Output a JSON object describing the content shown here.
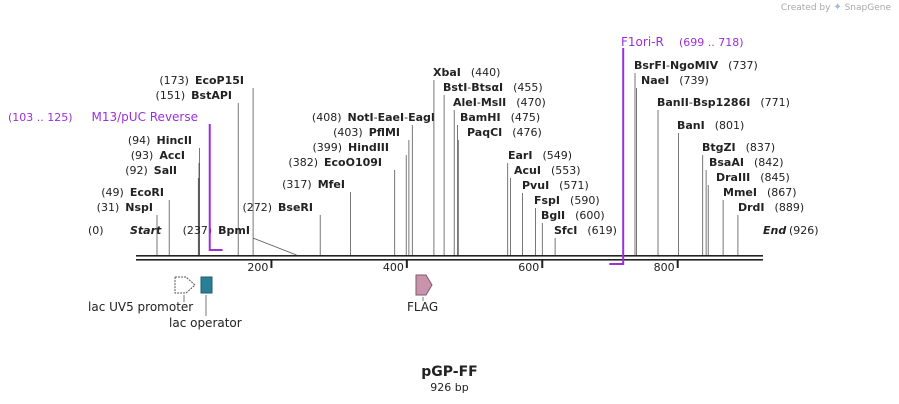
{
  "credit": {
    "created_by": "Created by",
    "brand": "SnapGene",
    "brand_icon": "snapgene-logo-icon"
  },
  "plasmid": {
    "name": "pGP-FF",
    "length_label": "926 bp",
    "length": 926
  },
  "ends": {
    "start_label": "Start",
    "start_pos": "(0)",
    "end_label": "End",
    "end_pos": "(926)"
  },
  "ruler": {
    "ticks": [
      200,
      400,
      600,
      800
    ]
  },
  "colors": {
    "backbone": "#222222",
    "primer": "#9b30d9",
    "lac_operator": "#2a7f95",
    "flag": "#c994ab",
    "lac_promoter": "#ffffff"
  },
  "primers": [
    {
      "name": "M13/pUC Reverse",
      "range": "(103 .. 125)",
      "start": 103,
      "end": 125,
      "direction": "forward"
    },
    {
      "name": "F1ori-R",
      "range": "(699 .. 718)",
      "start": 699,
      "end": 718,
      "direction": "reverse"
    }
  ],
  "features": [
    {
      "name": "lac UV5 promoter",
      "start": 68,
      "end": 99,
      "shape": "arrow-outline"
    },
    {
      "name": "lac operator",
      "start": 105,
      "end": 121,
      "shape": "box"
    },
    {
      "name": "FLAG",
      "start": 409,
      "end": 432,
      "shape": "arrow"
    }
  ],
  "sites": [
    {
      "pos": 31,
      "pos_label": "(31)",
      "labels": [
        "NspI"
      ]
    },
    {
      "pos": 49,
      "pos_label": "(49)",
      "labels": [
        "EcoRI"
      ]
    },
    {
      "pos": 92,
      "pos_label": "(92)",
      "labels": [
        "SalI"
      ]
    },
    {
      "pos": 93,
      "pos_label": "(93)",
      "labels": [
        "AccI"
      ]
    },
    {
      "pos": 94,
      "pos_label": "(94)",
      "labels": [
        "HincII"
      ]
    },
    {
      "pos": 151,
      "pos_label": "(151)",
      "labels": [
        "BstAPI"
      ]
    },
    {
      "pos": 173,
      "pos_label": "(173)",
      "labels": [
        "EcoP15I"
      ]
    },
    {
      "pos": 237,
      "pos_label": "(237)",
      "labels": [
        "BpmI"
      ]
    },
    {
      "pos": 272,
      "pos_label": "(272)",
      "labels": [
        "BseRI"
      ]
    },
    {
      "pos": 317,
      "pos_label": "(317)",
      "labels": [
        "MfeI"
      ]
    },
    {
      "pos": 382,
      "pos_label": "(382)",
      "labels": [
        "EcoO109I"
      ]
    },
    {
      "pos": 399,
      "pos_label": "(399)",
      "labels": [
        "HindIII"
      ]
    },
    {
      "pos": 403,
      "pos_label": "(403)",
      "labels": [
        "PflMI"
      ]
    },
    {
      "pos": 408,
      "pos_label": "(408)",
      "labels": [
        "NotI",
        "EaeI",
        "EagI"
      ]
    },
    {
      "pos": 440,
      "pos_label": "(440)",
      "labels": [
        "XbaI"
      ]
    },
    {
      "pos": 455,
      "pos_label": "(455)",
      "labels": [
        "BstI",
        "BtsαI"
      ]
    },
    {
      "pos": 470,
      "pos_label": "(470)",
      "labels": [
        "AleI",
        "MslI"
      ]
    },
    {
      "pos": 475,
      "pos_label": "(475)",
      "labels": [
        "BamHI"
      ]
    },
    {
      "pos": 476,
      "pos_label": "(476)",
      "labels": [
        "PaqCI"
      ]
    },
    {
      "pos": 549,
      "pos_label": "(549)",
      "labels": [
        "EarI"
      ]
    },
    {
      "pos": 553,
      "pos_label": "(553)",
      "labels": [
        "AcuI"
      ]
    },
    {
      "pos": 571,
      "pos_label": "(571)",
      "labels": [
        "PvuI"
      ]
    },
    {
      "pos": 590,
      "pos_label": "(590)",
      "labels": [
        "FspI"
      ]
    },
    {
      "pos": 600,
      "pos_label": "(600)",
      "labels": [
        "BglI"
      ]
    },
    {
      "pos": 619,
      "pos_label": "(619)",
      "labels": [
        "SfcI"
      ]
    },
    {
      "pos": 737,
      "pos_label": "(737)",
      "labels": [
        "BsrFI",
        "NgoMIV"
      ]
    },
    {
      "pos": 739,
      "pos_label": "(739)",
      "labels": [
        "NaeI"
      ]
    },
    {
      "pos": 771,
      "pos_label": "(771)",
      "labels": [
        "BanII",
        "Bsp1286I"
      ]
    },
    {
      "pos": 801,
      "pos_label": "(801)",
      "labels": [
        "BanI"
      ]
    },
    {
      "pos": 837,
      "pos_label": "(837)",
      "labels": [
        "BtgZI"
      ]
    },
    {
      "pos": 842,
      "pos_label": "(842)",
      "labels": [
        "BsaAI"
      ]
    },
    {
      "pos": 845,
      "pos_label": "(845)",
      "labels": [
        "DraIII"
      ]
    },
    {
      "pos": 867,
      "pos_label": "(867)",
      "labels": [
        "MmeI"
      ]
    },
    {
      "pos": 889,
      "pos_label": "(889)",
      "labels": [
        "DrdI"
      ]
    }
  ]
}
